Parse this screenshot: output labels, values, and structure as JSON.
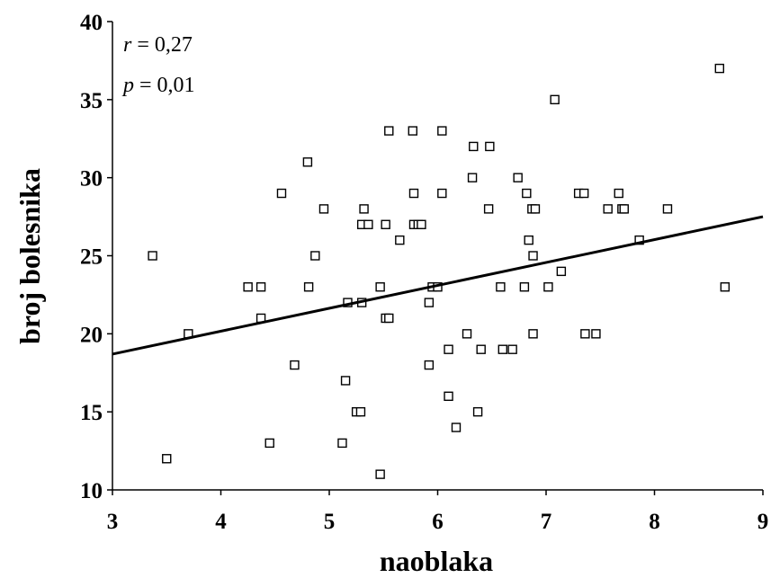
{
  "chart_data": {
    "type": "scatter",
    "xlabel": "naoblaka",
    "ylabel": "broj bolesnika",
    "xlim": [
      3,
      9
    ],
    "ylim": [
      10,
      40
    ],
    "xticks": [
      "3",
      "4",
      "5",
      "6",
      "7",
      "8",
      "9"
    ],
    "yticks": [
      "10",
      "15",
      "20",
      "25",
      "30",
      "35",
      "40"
    ],
    "grid": false,
    "annotations": {
      "r_symbol": "r",
      "r_text": " = 0,27",
      "p_symbol": "p",
      "p_text": " = 0,01"
    },
    "trendline": {
      "x": [
        3,
        9
      ],
      "y": [
        18.7,
        27.5
      ]
    },
    "points": [
      [
        3.37,
        25
      ],
      [
        3.5,
        12
      ],
      [
        3.7,
        20
      ],
      [
        4.25,
        23
      ],
      [
        4.37,
        23
      ],
      [
        4.37,
        21
      ],
      [
        4.45,
        13
      ],
      [
        4.56,
        29
      ],
      [
        4.68,
        18
      ],
      [
        4.8,
        31
      ],
      [
        4.81,
        23
      ],
      [
        4.87,
        25
      ],
      [
        4.95,
        28
      ],
      [
        5.12,
        13
      ],
      [
        5.15,
        17
      ],
      [
        5.17,
        22
      ],
      [
        5.25,
        15
      ],
      [
        5.29,
        15
      ],
      [
        5.3,
        27
      ],
      [
        5.3,
        22
      ],
      [
        5.32,
        28
      ],
      [
        5.36,
        27
      ],
      [
        5.47,
        23
      ],
      [
        5.47,
        11
      ],
      [
        5.52,
        27
      ],
      [
        5.52,
        21
      ],
      [
        5.55,
        21
      ],
      [
        5.55,
        33
      ],
      [
        5.65,
        26
      ],
      [
        5.77,
        33
      ],
      [
        5.78,
        29
      ],
      [
        5.78,
        27
      ],
      [
        5.82,
        27
      ],
      [
        5.85,
        27
      ],
      [
        5.92,
        22
      ],
      [
        5.92,
        18
      ],
      [
        5.95,
        23
      ],
      [
        6.0,
        23
      ],
      [
        6.04,
        33
      ],
      [
        6.04,
        29
      ],
      [
        6.1,
        19
      ],
      [
        6.1,
        16
      ],
      [
        6.17,
        14
      ],
      [
        6.27,
        20
      ],
      [
        6.32,
        30
      ],
      [
        6.33,
        32
      ],
      [
        6.37,
        15
      ],
      [
        6.4,
        19
      ],
      [
        6.47,
        28
      ],
      [
        6.48,
        32
      ],
      [
        6.58,
        23
      ],
      [
        6.6,
        19
      ],
      [
        6.69,
        19
      ],
      [
        6.74,
        30
      ],
      [
        6.8,
        23
      ],
      [
        6.82,
        29
      ],
      [
        6.84,
        26
      ],
      [
        6.87,
        28
      ],
      [
        6.88,
        25
      ],
      [
        6.88,
        20
      ],
      [
        6.9,
        28
      ],
      [
        7.02,
        23
      ],
      [
        7.08,
        35
      ],
      [
        7.14,
        24
      ],
      [
        7.3,
        29
      ],
      [
        7.35,
        29
      ],
      [
        7.36,
        20
      ],
      [
        7.46,
        20
      ],
      [
        7.57,
        28
      ],
      [
        7.67,
        29
      ],
      [
        7.7,
        28
      ],
      [
        7.72,
        28
      ],
      [
        7.86,
        26
      ],
      [
        8.12,
        28
      ],
      [
        8.6,
        37
      ],
      [
        8.65,
        23
      ]
    ]
  }
}
